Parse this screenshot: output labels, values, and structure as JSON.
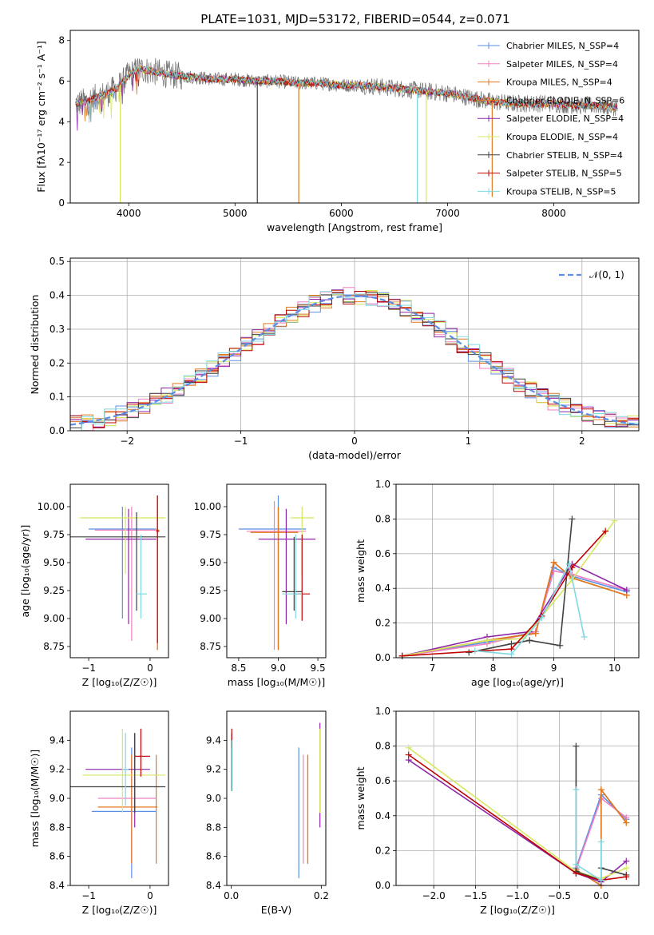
{
  "figure": {
    "title": "PLATE=1031, MJD=53172, FIBERID=0544, z=0.071",
    "colors": [
      "#5B8FE6",
      "#F080C0",
      "#E07820",
      "#E07820",
      "#8E24AA",
      "#D7E860",
      "#404040",
      "#C00000",
      "#80D8E0"
    ],
    "model_labels": [
      "Chabrier MILES, N_SSP=4",
      "Salpeter MILES, N_SSP=4",
      "Kroupa MILES, N_SSP=4",
      "Chabrier ELODIE, N_SSP=6",
      "Salpeter ELODIE, N_SSP=4",
      "Kroupa ELODIE, N_SSP=4",
      "Chabrier STELIB, N_SSP=4",
      "Salpeter STELIB, N_SSP=5",
      "Kroupa STELIB, N_SSP=5"
    ]
  },
  "chart_data": [
    {
      "id": "spectrum",
      "type": "line",
      "title": "PLATE=1031, MJD=53172, FIBERID=0544, z=0.071",
      "xlabel": "wavelength [Angstrom, rest frame]",
      "ylabel": "Flux [fλ10⁻¹⁷ erg cm⁻² s⁻¹ A⁻¹]",
      "xlim": [
        3450,
        8800
      ],
      "ylim": [
        0,
        8.5
      ],
      "xticks": [
        4000,
        5000,
        6000,
        7000,
        8000
      ],
      "yticks": [
        0,
        2,
        4,
        6,
        8
      ],
      "legend": "top-right",
      "continuum": {
        "x": [
          3500,
          3600,
          3700,
          3800,
          3900,
          4000,
          4100,
          4200,
          4400,
          4600,
          4800,
          5000,
          5200,
          5400,
          5600,
          5800,
          6000,
          6200,
          6400,
          6600,
          6800,
          7000,
          7200,
          7400,
          7600,
          7800,
          8000,
          8200,
          8400,
          8600
        ],
        "y": [
          4.9,
          5.0,
          5.2,
          5.4,
          5.7,
          6.3,
          6.6,
          6.5,
          6.3,
          6.2,
          6.1,
          6.1,
          6.0,
          6.0,
          5.9,
          5.9,
          5.8,
          5.8,
          5.7,
          5.6,
          5.5,
          5.4,
          5.2,
          5.0,
          4.9,
          4.9,
          4.9,
          4.8,
          4.8,
          4.7
        ]
      },
      "spikes": [
        {
          "x": 3920,
          "y": 0,
          "color": "#D7E860"
        },
        {
          "x": 5210,
          "y": 0,
          "color": "#404040"
        },
        {
          "x": 5600,
          "y": 0,
          "color": "#E07820"
        },
        {
          "x": 6715,
          "y": 0,
          "color": "#80D8E0"
        },
        {
          "x": 6800,
          "y": 0,
          "color": "#D7E860"
        },
        {
          "x": 7420,
          "y": 0.3,
          "color": "#E07820"
        }
      ]
    },
    {
      "id": "residual_histogram",
      "type": "bar",
      "xlabel": "(data-model)/error",
      "ylabel": "Normed distribution",
      "xlim": [
        -2.5,
        2.5
      ],
      "ylim": [
        0,
        0.51
      ],
      "xticks": [
        -2,
        -1,
        0,
        1,
        2
      ],
      "yticks": [
        0.0,
        0.1,
        0.2,
        0.3,
        0.4,
        0.5
      ],
      "legend": "top-right",
      "gaussian_label": "𝒩(0, 1)",
      "bin_width": 0.1
    },
    {
      "id": "age_vs_Z",
      "type": "scatter",
      "xlabel": "Z [log₁₀(Z/Z☉)]",
      "ylabel": "age  [log₁₀(age/yr)]",
      "xlim": [
        -1.3,
        0.3
      ],
      "ylim": [
        8.65,
        10.2
      ],
      "xticks": [
        -1,
        0
      ],
      "yticks": [
        8.75,
        9.0,
        9.25,
        9.5,
        9.75,
        10.0
      ],
      "points": [
        {
          "model": 0,
          "x": -0.45,
          "xlo": -1.0,
          "xhi": 0.1,
          "y": 9.8,
          "ylo": 9.0,
          "yhi": 10.0
        },
        {
          "model": 1,
          "x": -0.3,
          "xlo": -0.9,
          "xhi": 0.1,
          "y": 9.79,
          "ylo": 8.8,
          "yhi": 10.0
        },
        {
          "model": 2,
          "x": 0.12,
          "xlo": 0.1,
          "xhi": 0.15,
          "y": 9.79,
          "ylo": 8.72,
          "yhi": 10.1
        },
        {
          "model": 3,
          "x": 0.12,
          "xlo": 0.1,
          "xhi": 0.15,
          "y": 9.79,
          "ylo": 8.72,
          "yhi": 10.1
        },
        {
          "model": 4,
          "x": -0.35,
          "xlo": -1.05,
          "xhi": 0.1,
          "y": 9.71,
          "ylo": 8.95,
          "yhi": 9.98
        },
        {
          "model": 5,
          "x": -0.4,
          "xlo": -1.15,
          "xhi": 0.25,
          "y": 9.9,
          "ylo": 9.4,
          "yhi": 10.0
        },
        {
          "model": 6,
          "x": -0.22,
          "xlo": -1.3,
          "xhi": 0.25,
          "y": 9.73,
          "ylo": 9.07,
          "yhi": 9.95
        },
        {
          "model": 7,
          "x": 0.12,
          "xlo": 0.1,
          "xhi": 0.15,
          "y": 9.78,
          "ylo": 8.78,
          "yhi": 10.1
        },
        {
          "model": 8,
          "x": -0.15,
          "xlo": -0.22,
          "xhi": -0.05,
          "y": 9.22,
          "ylo": 9.0,
          "yhi": 9.75
        }
      ]
    },
    {
      "id": "age_vs_mass",
      "type": "scatter",
      "xlabel": "mass [log₁₀(M/M☉)]",
      "ylabel": "",
      "xlim": [
        8.35,
        9.6
      ],
      "ylim": [
        8.65,
        10.2
      ],
      "xticks": [
        8.5,
        9.0,
        9.5
      ],
      "yticks": [
        8.75,
        9.0,
        9.25,
        9.5,
        9.75,
        10.0
      ],
      "points": [
        {
          "model": 0,
          "x": 9.0,
          "xlo": 8.5,
          "xhi": 9.35,
          "y": 9.8,
          "ylo": 8.72,
          "yhi": 10.1
        },
        {
          "model": 1,
          "x": 8.95,
          "xlo": 8.6,
          "xhi": 9.35,
          "y": 9.78,
          "ylo": 8.72,
          "yhi": 10.05
        },
        {
          "model": 2,
          "x": 9.0,
          "xlo": 8.65,
          "xhi": 9.25,
          "y": 9.77,
          "ylo": 8.72,
          "yhi": 10.0
        },
        {
          "model": 3,
          "x": 9.0,
          "xlo": 8.65,
          "xhi": 9.25,
          "y": 9.77,
          "ylo": 8.72,
          "yhi": 10.0
        },
        {
          "model": 4,
          "x": 9.1,
          "xlo": 8.75,
          "xhi": 9.47,
          "y": 9.71,
          "ylo": 8.95,
          "yhi": 9.98
        },
        {
          "model": 5,
          "x": 9.3,
          "xlo": 9.15,
          "xhi": 9.45,
          "y": 9.9,
          "ylo": 9.4,
          "yhi": 10.0
        },
        {
          "model": 6,
          "x": 9.2,
          "xlo": 9.05,
          "xhi": 9.3,
          "y": 9.24,
          "ylo": 9.07,
          "yhi": 9.73
        },
        {
          "model": 7,
          "x": 9.3,
          "xlo": 9.2,
          "xhi": 9.4,
          "y": 9.22,
          "ylo": 8.98,
          "yhi": 9.75
        },
        {
          "model": 8,
          "x": 9.22,
          "xlo": 9.05,
          "xhi": 9.3,
          "y": 9.22,
          "ylo": 9.0,
          "yhi": 9.75
        }
      ]
    },
    {
      "id": "mass_weight_vs_age",
      "type": "line",
      "xlabel": "age  [log₁₀(age/yr)]",
      "ylabel": "mass weight",
      "xlim": [
        6.4,
        10.4
      ],
      "ylim": [
        0,
        1.0
      ],
      "xticks": [
        7,
        8,
        9,
        10
      ],
      "yticks": [
        0.0,
        0.2,
        0.4,
        0.6,
        0.8,
        1.0
      ],
      "series": [
        {
          "model": 0,
          "x": [
            6.5,
            7.9,
            8.7,
            9.0,
            9.3,
            10.2
          ],
          "y": [
            0.01,
            0.09,
            0.15,
            0.52,
            0.47,
            0.38
          ]
        },
        {
          "model": 1,
          "x": [
            6.5,
            7.9,
            8.7,
            9.0,
            9.3,
            10.2
          ],
          "y": [
            0.01,
            0.08,
            0.15,
            0.5,
            0.48,
            0.39
          ]
        },
        {
          "model": 2,
          "x": [
            6.5,
            7.9,
            8.7,
            9.0,
            9.3,
            10.2
          ],
          "y": [
            0.01,
            0.1,
            0.14,
            0.55,
            0.46,
            0.36
          ]
        },
        {
          "model": 3,
          "x": [
            6.5,
            7.9,
            8.7,
            9.0,
            9.3,
            10.2
          ],
          "y": [
            0.01,
            0.1,
            0.14,
            0.55,
            0.46,
            0.36
          ]
        },
        {
          "model": 4,
          "x": [
            6.5,
            7.9,
            8.6,
            9.3,
            10.2
          ],
          "y": [
            0.01,
            0.12,
            0.15,
            0.54,
            0.39
          ]
        },
        {
          "model": 5,
          "x": [
            6.5,
            7.9,
            8.5,
            9.3,
            10.0
          ],
          "y": [
            0.01,
            0.1,
            0.11,
            0.45,
            0.79
          ]
        },
        {
          "model": 6,
          "x": [
            7.6,
            8.3,
            8.6,
            9.1,
            9.3
          ],
          "y": [
            0.03,
            0.08,
            0.1,
            0.07,
            0.8
          ]
        },
        {
          "model": 7,
          "x": [
            6.5,
            8.3,
            8.8,
            9.3,
            9.85
          ],
          "y": [
            0.01,
            0.05,
            0.24,
            0.52,
            0.73
          ]
        },
        {
          "model": 8,
          "x": [
            7.7,
            8.3,
            8.8,
            9.25,
            9.5
          ],
          "y": [
            0.04,
            0.02,
            0.23,
            0.54,
            0.12
          ]
        }
      ]
    },
    {
      "id": "mass_vs_Z",
      "type": "scatter",
      "xlabel": "Z [log₁₀(Z/Z☉)]",
      "ylabel": "mass [log₁₀(M/M☉)]",
      "xlim": [
        -1.3,
        0.3
      ],
      "ylim": [
        8.4,
        9.6
      ],
      "xticks": [
        -1,
        0
      ],
      "yticks": [
        8.4,
        8.6,
        8.8,
        9.0,
        9.2,
        9.4
      ],
      "points": [
        {
          "model": 0,
          "x": -0.3,
          "xlo": -0.95,
          "xhi": 0.1,
          "y": 8.91,
          "ylo": 8.45,
          "yhi": 9.35
        },
        {
          "model": 1,
          "x": -0.3,
          "xlo": -0.85,
          "xhi": 0.1,
          "y": 9.0,
          "ylo": 8.55,
          "yhi": 9.3
        },
        {
          "model": 2,
          "x": -0.3,
          "xlo": -0.85,
          "xhi": 0.1,
          "y": 8.94,
          "ylo": 8.55,
          "yhi": 9.3
        },
        {
          "model": 3,
          "x": 0.1,
          "xlo": 0.08,
          "xhi": 0.12,
          "y": 8.94,
          "ylo": 8.55,
          "yhi": 9.3
        },
        {
          "model": 4,
          "x": -0.25,
          "xlo": -1.05,
          "xhi": 0.0,
          "y": 9.2,
          "ylo": 8.8,
          "yhi": 9.45
        },
        {
          "model": 5,
          "x": -0.45,
          "xlo": -1.1,
          "xhi": 0.25,
          "y": 9.16,
          "ylo": 8.9,
          "yhi": 9.48
        },
        {
          "model": 6,
          "x": -0.25,
          "xlo": -1.3,
          "xhi": 0.25,
          "y": 9.08,
          "ylo": 8.9,
          "yhi": 9.45
        },
        {
          "model": 7,
          "x": -0.15,
          "xlo": -0.25,
          "xhi": 0.0,
          "y": 9.29,
          "ylo": 9.15,
          "yhi": 9.48
        },
        {
          "model": 8,
          "x": -0.4,
          "xlo": -0.45,
          "xhi": -0.35,
          "y": 9.2,
          "ylo": 8.95,
          "yhi": 9.45
        }
      ]
    },
    {
      "id": "mass_vs_ebv",
      "type": "scatter",
      "xlabel": "E(B-V)",
      "ylabel": "",
      "xlim": [
        -0.01,
        0.21
      ],
      "ylim": [
        8.4,
        9.6
      ],
      "xticks": [
        0.0,
        0.2
      ],
      "yticks": [
        8.4,
        8.6,
        8.8,
        9.0,
        9.2,
        9.4
      ],
      "points": [
        {
          "model": 0,
          "x": 0.15,
          "xlo": 0.15,
          "xhi": 0.15,
          "y": 8.9,
          "ylo": 8.45,
          "yhi": 9.35
        },
        {
          "model": 1,
          "x": 0.16,
          "xlo": 0.16,
          "xhi": 0.16,
          "y": 8.9,
          "ylo": 8.55,
          "yhi": 9.3
        },
        {
          "model": 2,
          "x": 0.17,
          "xlo": 0.17,
          "xhi": 0.17,
          "y": 8.9,
          "ylo": 8.55,
          "yhi": 9.3
        },
        {
          "model": 3,
          "x": 0.17,
          "xlo": 0.17,
          "xhi": 0.17,
          "y": 8.9,
          "ylo": 8.55,
          "yhi": 9.3
        },
        {
          "model": 4,
          "x": 0.197,
          "xlo": 0.197,
          "xhi": 0.197,
          "y": 9.2,
          "ylo": 8.8,
          "yhi": 9.52
        },
        {
          "model": 5,
          "x": 0.197,
          "xlo": 0.197,
          "xhi": 0.197,
          "y": 9.2,
          "ylo": 8.9,
          "yhi": 9.48
        },
        {
          "model": 6,
          "x": 0.001,
          "xlo": 0.001,
          "xhi": 0.001,
          "y": 9.2,
          "ylo": 9.05,
          "yhi": 9.45
        },
        {
          "model": 7,
          "x": 0.001,
          "xlo": 0.001,
          "xhi": 0.001,
          "y": 9.4,
          "ylo": 9.35,
          "yhi": 9.48
        },
        {
          "model": 8,
          "x": 0.002,
          "xlo": 0.002,
          "xhi": 0.002,
          "y": 9.2,
          "ylo": 9.05,
          "yhi": 9.4
        }
      ]
    },
    {
      "id": "mass_weight_vs_Z",
      "type": "line",
      "xlabel": "Z [log₁₀(Z/Z☉)]",
      "ylabel": "mass weight",
      "xlim": [
        -2.45,
        0.45
      ],
      "ylim": [
        0,
        1.0
      ],
      "xticks": [
        -2.0,
        -1.5,
        -1.0,
        -0.5,
        0.0
      ],
      "yticks": [
        0.0,
        0.2,
        0.4,
        0.6,
        0.8,
        1.0
      ],
      "series": [
        {
          "model": 0,
          "x": [
            -0.3,
            0.0,
            0.3
          ],
          "y": [
            0.1,
            0.52,
            0.38
          ]
        },
        {
          "model": 1,
          "x": [
            -0.3,
            0.0,
            0.3
          ],
          "y": [
            0.09,
            0.5,
            0.39
          ]
        },
        {
          "model": 2,
          "x": [
            -0.3,
            0.0,
            0.0,
            0.3
          ],
          "y": [
            0.09,
            0.0,
            0.55,
            0.36
          ]
        },
        {
          "model": 3,
          "x": [
            -0.3,
            0.0,
            0.0,
            0.3
          ],
          "y": [
            0.09,
            0.0,
            0.55,
            0.36
          ]
        },
        {
          "model": 4,
          "x": [
            -2.3,
            -0.3,
            0.0,
            0.3
          ],
          "y": [
            0.72,
            0.07,
            0.02,
            0.14
          ]
        },
        {
          "model": 5,
          "x": [
            -2.3,
            -0.3,
            0.0,
            0.3
          ],
          "y": [
            0.79,
            0.08,
            0.04,
            0.1
          ]
        },
        {
          "model": 6,
          "x": [
            -0.3,
            -0.3,
            0.0,
            0.0,
            0.3
          ],
          "y": [
            0.8,
            0.08,
            0.03,
            0.1,
            0.06
          ]
        },
        {
          "model": 7,
          "x": [
            -2.3,
            -0.3,
            0.0,
            0.3
          ],
          "y": [
            0.75,
            0.07,
            0.03,
            0.05
          ]
        },
        {
          "model": 8,
          "x": [
            -0.3,
            -0.3,
            0.0,
            0.0
          ],
          "y": [
            0.55,
            0.12,
            0.03,
            0.25
          ]
        }
      ]
    }
  ]
}
